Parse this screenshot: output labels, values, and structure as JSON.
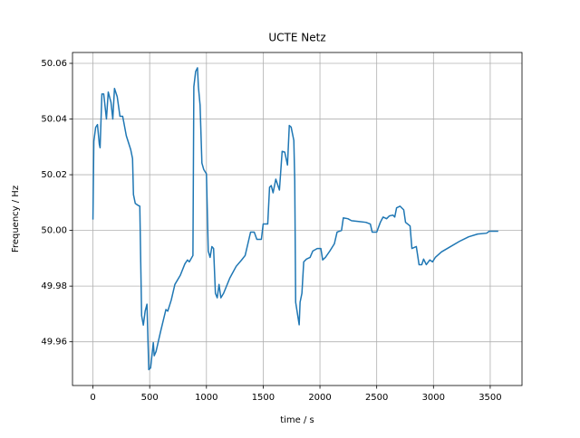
{
  "chart_data": {
    "type": "line",
    "title": "UCTE Netz",
    "xlabel": "time / s",
    "ylabel": "Frequency / Hz",
    "x": [
      0,
      8,
      24,
      40,
      56,
      63,
      79,
      95,
      119,
      135,
      159,
      175,
      190,
      214,
      238,
      262,
      294,
      333,
      349,
      357,
      373,
      397,
      413,
      421,
      429,
      444,
      460,
      476,
      492,
      508,
      532,
      540,
      556,
      595,
      643,
      659,
      690,
      722,
      770,
      810,
      833,
      849,
      881,
      889,
      905,
      921,
      929,
      944,
      960,
      976,
      1000,
      1016,
      1032,
      1048,
      1063,
      1079,
      1095,
      1111,
      1127,
      1151,
      1206,
      1262,
      1310,
      1341,
      1365,
      1389,
      1421,
      1444,
      1484,
      1500,
      1540,
      1556,
      1571,
      1587,
      1611,
      1643,
      1667,
      1690,
      1714,
      1730,
      1746,
      1770,
      1778,
      1786,
      1802,
      1817,
      1825,
      1841,
      1857,
      1881,
      1913,
      1937,
      1976,
      2008,
      2024,
      2048,
      2087,
      2127,
      2151,
      2190,
      2206,
      2246,
      2278,
      2341,
      2405,
      2444,
      2460,
      2500,
      2532,
      2556,
      2587,
      2611,
      2643,
      2659,
      2675,
      2706,
      2738,
      2754,
      2794,
      2810,
      2849,
      2873,
      2897,
      2913,
      2937,
      2968,
      2992,
      3016,
      3071,
      3151,
      3230,
      3310,
      3389,
      3468,
      3492,
      3571
    ],
    "series": [
      {
        "name": "Frequency",
        "color": "#1f77b4",
        "values": [
          50.0039,
          50.032,
          50.037,
          50.038,
          50.031,
          50.0297,
          50.049,
          50.049,
          50.04,
          50.0497,
          50.046,
          50.04,
          50.051,
          50.048,
          50.041,
          50.041,
          50.034,
          50.029,
          50.0258,
          50.0129,
          50.0097,
          50.009,
          50.0087,
          49.9887,
          49.9694,
          49.966,
          49.971,
          49.9735,
          49.95,
          49.9506,
          49.9597,
          49.955,
          49.9565,
          49.9635,
          49.9716,
          49.971,
          49.975,
          49.9806,
          49.9839,
          49.988,
          49.9894,
          49.9887,
          49.991,
          50.0516,
          50.0571,
          50.0584,
          50.0516,
          50.045,
          50.0242,
          50.0219,
          50.0203,
          49.9926,
          49.9903,
          49.9942,
          49.9935,
          49.9774,
          49.9758,
          49.9806,
          49.9758,
          49.9774,
          49.9829,
          49.9871,
          49.9894,
          49.991,
          49.9952,
          49.9994,
          49.9994,
          49.9968,
          49.9968,
          50.0023,
          50.0023,
          50.0155,
          50.0161,
          50.0135,
          50.0184,
          50.0145,
          50.0284,
          50.0281,
          50.0235,
          50.0377,
          50.0371,
          50.0323,
          50.0177,
          49.9742,
          49.97,
          49.9661,
          49.9742,
          49.9774,
          49.9887,
          49.9897,
          49.9903,
          49.9926,
          49.9935,
          49.9935,
          49.9894,
          49.9903,
          49.9926,
          49.9952,
          49.9994,
          50.0,
          50.0045,
          50.0042,
          50.0035,
          50.0032,
          50.0029,
          50.0023,
          49.9994,
          49.9994,
          50.0029,
          50.0048,
          50.0042,
          50.0052,
          50.0055,
          50.0048,
          50.0081,
          50.0087,
          50.0074,
          50.0029,
          50.0016,
          49.9935,
          49.9942,
          49.9877,
          49.9877,
          49.9897,
          49.9877,
          49.9894,
          49.9887,
          49.9903,
          49.9923,
          49.9942,
          49.9961,
          49.9977,
          49.9987,
          49.999,
          49.9997,
          49.9997
        ]
      }
    ],
    "xlim": [
      -180,
      3780
    ],
    "xticks": [
      0,
      500,
      1000,
      1500,
      2000,
      2500,
      3000,
      3500
    ],
    "ylim": [
      49.9443,
      50.0639
    ],
    "yticks": [
      49.96,
      49.98,
      {
        "value": 50,
        "label": "50.00"
      },
      50.02,
      50.04,
      50.06
    ],
    "grid": true
  }
}
